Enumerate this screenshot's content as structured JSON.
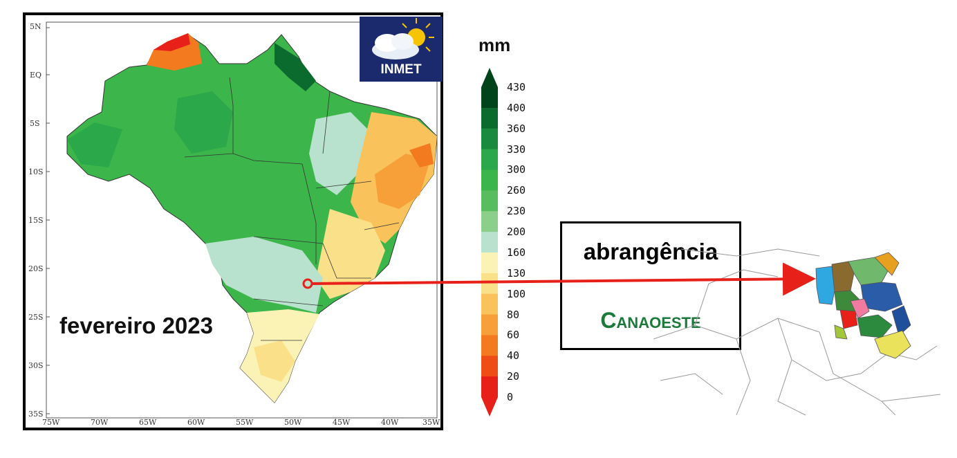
{
  "map": {
    "lat_labels": [
      "5N",
      "EQ",
      "5S",
      "10S",
      "15S",
      "20S",
      "25S",
      "30S",
      "35S"
    ],
    "lon_labels": [
      "75W",
      "70W",
      "65W",
      "60W",
      "55W",
      "50W",
      "45W",
      "40W",
      "35W"
    ],
    "month_label": "fevereiro 2023",
    "logo_text": "INMET"
  },
  "colorbar": {
    "unit": "mm",
    "ticks": [
      "430",
      "400",
      "360",
      "330",
      "300",
      "260",
      "230",
      "200",
      "160",
      "130",
      "100",
      "80",
      "60",
      "40",
      "20",
      "0"
    ],
    "colors": [
      "#00441b",
      "#0b6b2f",
      "#1a8a3f",
      "#2aa84a",
      "#3cb54b",
      "#58bd5f",
      "#8ccf8a",
      "#b8e2cd",
      "#fbf3b5",
      "#fbe08a",
      "#f9c25a",
      "#f7a03a",
      "#f37a1e",
      "#ee4e16",
      "#e8201a"
    ]
  },
  "legend": {
    "title": "abrangência",
    "org": "Canaoeste"
  },
  "colors": {
    "arrow": "#e8201a",
    "org_text": "#1b7a3a"
  }
}
